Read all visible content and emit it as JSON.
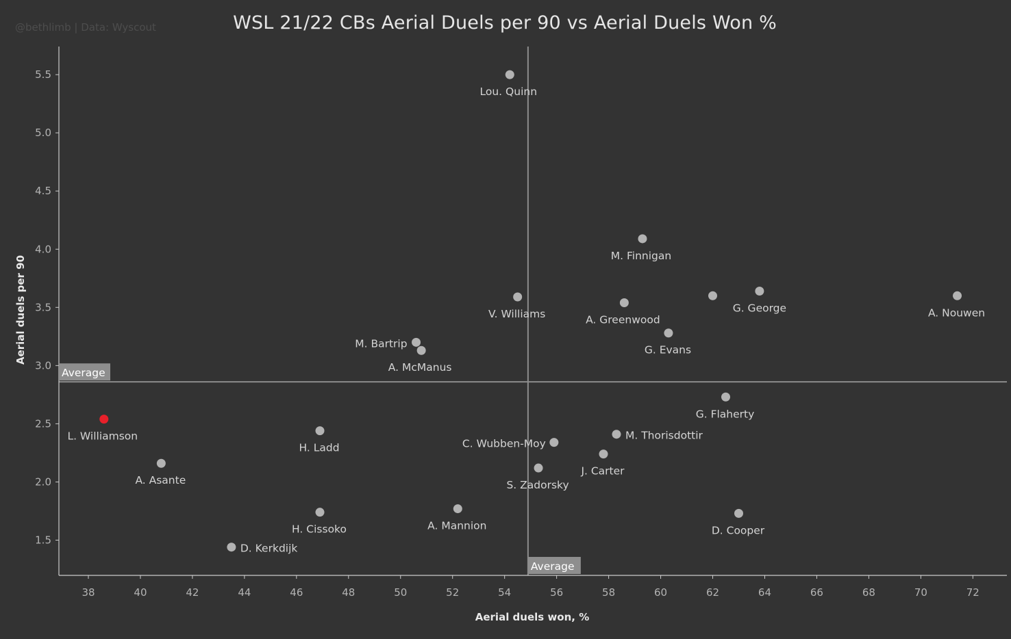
{
  "credit": "@bethlimb | Data: Wyscout",
  "chart_data": {
    "type": "scatter",
    "title": "WSL 21/22 CBs Aerial Duels per 90 vs Aerial Duels Won %",
    "xlabel": "Aerial duels won, %",
    "ylabel": "Aerial duels per 90",
    "xticks": [
      38,
      40,
      42,
      44,
      46,
      48,
      50,
      52,
      54,
      56,
      58,
      60,
      62,
      64,
      66,
      68,
      70,
      72
    ],
    "yticks": [
      1.5,
      2.0,
      2.5,
      3.0,
      3.5,
      4.0,
      4.5,
      5.0,
      5.5
    ],
    "x_average": 54.9,
    "y_average": 2.86,
    "average_label": "Average",
    "grid": false,
    "colors": {
      "point": "#b3b3b3",
      "highlight": "#e8202a",
      "background": "#333333",
      "reference": "#8c8c8c"
    },
    "points": [
      {
        "name": "Lou. Quinn",
        "x": 54.2,
        "y": 5.5
      },
      {
        "name": "M. Finnigan",
        "x": 59.3,
        "y": 4.09
      },
      {
        "name": "",
        "x": 62.0,
        "y": 3.6
      },
      {
        "name": "G. George",
        "x": 63.8,
        "y": 3.64
      },
      {
        "name": "A. Nouwen",
        "x": 71.4,
        "y": 3.6
      },
      {
        "name": "V. Williams",
        "x": 54.5,
        "y": 3.59
      },
      {
        "name": "A. Greenwood",
        "x": 58.6,
        "y": 3.54
      },
      {
        "name": "G. Evans",
        "x": 60.3,
        "y": 3.28
      },
      {
        "name": "M. Bartrip",
        "x": 50.6,
        "y": 3.2
      },
      {
        "name": "A. McManus",
        "x": 50.8,
        "y": 3.13
      },
      {
        "name": "G. Flaherty",
        "x": 62.5,
        "y": 2.73
      },
      {
        "name": "L. Williamson",
        "x": 38.6,
        "y": 2.54,
        "highlight": true
      },
      {
        "name": "H. Ladd",
        "x": 46.9,
        "y": 2.44
      },
      {
        "name": "M. Thorisdottir",
        "x": 58.3,
        "y": 2.41
      },
      {
        "name": "C. Wubben-Moy",
        "x": 55.9,
        "y": 2.34
      },
      {
        "name": "J. Carter",
        "x": 57.8,
        "y": 2.24
      },
      {
        "name": "A. Asante",
        "x": 40.8,
        "y": 2.16
      },
      {
        "name": "S. Zadorsky",
        "x": 55.3,
        "y": 2.12
      },
      {
        "name": "A. Mannion",
        "x": 52.2,
        "y": 1.77
      },
      {
        "name": "H. Cissoko",
        "x": 46.9,
        "y": 1.74
      },
      {
        "name": "D. Cooper",
        "x": 63.0,
        "y": 1.73
      },
      {
        "name": "D. Kerkdijk",
        "x": 43.5,
        "y": 1.44
      }
    ]
  }
}
